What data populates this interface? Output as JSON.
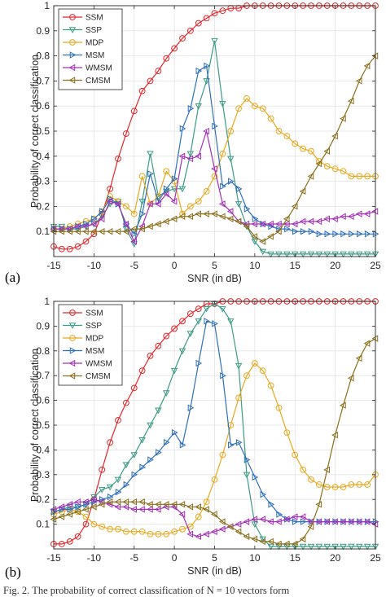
{
  "caption": "Fig. 2.   The probability of correct classification of N = 10 vectors form",
  "chart_data": [
    {
      "type": "line",
      "panel_label": "(a)",
      "xlabel": "SNR (in dB)",
      "ylabel": "Probability of correct classification",
      "xlim": [
        -15,
        25
      ],
      "ylim": [
        0,
        1
      ],
      "xticks": [
        "-15",
        "-10",
        "-5",
        "0",
        "5",
        "10",
        "15",
        "20",
        "25"
      ],
      "yticks": [
        "0.1",
        "0.2",
        "0.3",
        "0.4",
        "0.5",
        "0.6",
        "0.7",
        "0.8",
        "0.9",
        "1"
      ],
      "grid": true,
      "legend_position": "top-left",
      "x": [
        -15,
        -14,
        -13,
        -12,
        -11,
        -10,
        -9,
        -8,
        -7,
        -6,
        -5,
        -4,
        -3,
        -2,
        -1,
        0,
        1,
        2,
        3,
        4,
        5,
        6,
        7,
        8,
        9,
        10,
        11,
        12,
        13,
        14,
        15,
        16,
        17,
        18,
        19,
        20,
        21,
        22,
        23,
        24,
        25
      ],
      "series": [
        {
          "name": "SSM",
          "color": "#e3262b",
          "marker": "circle",
          "values": [
            0.04,
            0.03,
            0.03,
            0.04,
            0.06,
            0.09,
            0.17,
            0.27,
            0.39,
            0.49,
            0.58,
            0.66,
            0.7,
            0.74,
            0.79,
            0.83,
            0.87,
            0.9,
            0.93,
            0.95,
            0.97,
            0.98,
            0.99,
            0.99,
            1,
            1,
            1,
            1,
            1,
            1,
            1,
            1,
            1,
            1,
            1,
            1,
            1,
            1,
            1,
            1,
            1
          ]
        },
        {
          "name": "SSP",
          "color": "#3d9a86",
          "marker": "triangle-down",
          "values": [
            0.12,
            0.12,
            0.11,
            0.11,
            0.12,
            0.13,
            0.16,
            0.21,
            0.22,
            0.11,
            0.05,
            0.22,
            0.41,
            0.24,
            0.26,
            0.27,
            0.27,
            0.41,
            0.6,
            0.7,
            0.86,
            0.61,
            0.39,
            0.21,
            0.12,
            0.06,
            0.02,
            0.01,
            0.01,
            0.01,
            0.01,
            0.01,
            0.01,
            0.01,
            0.01,
            0.01,
            0.01,
            0.01,
            0.01,
            0.01,
            0.01
          ]
        },
        {
          "name": "MDP",
          "color": "#e8a81f",
          "marker": "circle",
          "values": [
            0.11,
            0.11,
            0.12,
            0.13,
            0.14,
            0.15,
            0.18,
            0.24,
            0.22,
            0.2,
            0.17,
            0.32,
            0.21,
            0.24,
            0.34,
            0.3,
            0.17,
            0.2,
            0.22,
            0.26,
            0.32,
            0.41,
            0.5,
            0.59,
            0.63,
            0.6,
            0.59,
            0.55,
            0.5,
            0.48,
            0.45,
            0.43,
            0.42,
            0.38,
            0.36,
            0.35,
            0.34,
            0.32,
            0.32,
            0.32,
            0.32
          ]
        },
        {
          "name": "MSM",
          "color": "#2f6fba",
          "marker": "triangle-right",
          "values": [
            0.11,
            0.11,
            0.11,
            0.12,
            0.13,
            0.15,
            0.18,
            0.23,
            0.21,
            0.13,
            0.09,
            0.17,
            0.33,
            0.22,
            0.27,
            0.31,
            0.51,
            0.59,
            0.74,
            0.76,
            0.52,
            0.28,
            0.3,
            0.27,
            0.19,
            0.15,
            0.13,
            0.12,
            0.11,
            0.11,
            0.1,
            0.1,
            0.1,
            0.09,
            0.09,
            0.09,
            0.09,
            0.09,
            0.09,
            0.09,
            0.09
          ]
        },
        {
          "name": "WMSM",
          "color": "#a330b7",
          "marker": "triangle-left",
          "values": [
            0.11,
            0.11,
            0.11,
            0.12,
            0.12,
            0.13,
            0.15,
            0.22,
            0.21,
            0.13,
            0.06,
            0.12,
            0.21,
            0.21,
            0.25,
            0.22,
            0.4,
            0.39,
            0.4,
            0.5,
            0.35,
            0.21,
            0.18,
            0.14,
            0.13,
            0.13,
            0.13,
            0.13,
            0.13,
            0.13,
            0.13,
            0.14,
            0.14,
            0.14,
            0.15,
            0.15,
            0.16,
            0.16,
            0.17,
            0.17,
            0.18
          ]
        },
        {
          "name": "CMSM",
          "color": "#8a6f1d",
          "marker": "triangle-left",
          "values": [
            0.1,
            0.1,
            0.1,
            0.1,
            0.1,
            0.1,
            0.1,
            0.1,
            0.1,
            0.1,
            0.11,
            0.11,
            0.12,
            0.13,
            0.14,
            0.15,
            0.16,
            0.16,
            0.17,
            0.17,
            0.17,
            0.16,
            0.15,
            0.14,
            0.12,
            0.08,
            0.06,
            0.08,
            0.1,
            0.15,
            0.2,
            0.26,
            0.32,
            0.37,
            0.42,
            0.48,
            0.55,
            0.62,
            0.7,
            0.76,
            0.8
          ]
        }
      ]
    },
    {
      "type": "line",
      "panel_label": "(b)",
      "xlabel": "SNR (in dB)",
      "ylabel": "Probability of correct classification",
      "xlim": [
        -15,
        25
      ],
      "ylim": [
        0,
        1
      ],
      "xticks": [
        "-15",
        "-10",
        "-5",
        "0",
        "5",
        "10",
        "15",
        "20",
        "25"
      ],
      "yticks": [
        "0.1",
        "0.2",
        "0.3",
        "0.4",
        "0.5",
        "0.6",
        "0.7",
        "0.8",
        "0.9",
        "1"
      ],
      "grid": true,
      "legend_position": "top-left",
      "x": [
        -15,
        -14,
        -13,
        -12,
        -11,
        -10,
        -9,
        -8,
        -7,
        -6,
        -5,
        -4,
        -3,
        -2,
        -1,
        0,
        1,
        2,
        3,
        4,
        5,
        6,
        7,
        8,
        9,
        10,
        11,
        12,
        13,
        14,
        15,
        16,
        17,
        18,
        19,
        20,
        21,
        22,
        23,
        24,
        25
      ],
      "series": [
        {
          "name": "SSM",
          "color": "#e3262b",
          "marker": "circle",
          "values": [
            0.02,
            0.02,
            0.03,
            0.05,
            0.1,
            0.2,
            0.32,
            0.43,
            0.52,
            0.59,
            0.65,
            0.72,
            0.78,
            0.82,
            0.86,
            0.89,
            0.92,
            0.95,
            0.97,
            0.99,
            0.99,
            1,
            1,
            1,
            1,
            1,
            1,
            1,
            1,
            1,
            1,
            1,
            1,
            1,
            1,
            1,
            1,
            1,
            1,
            1,
            1
          ]
        },
        {
          "name": "SSP",
          "color": "#3d9a86",
          "marker": "triangle-down",
          "values": [
            0.15,
            0.16,
            0.17,
            0.17,
            0.18,
            0.21,
            0.24,
            0.25,
            0.28,
            0.34,
            0.38,
            0.44,
            0.5,
            0.56,
            0.63,
            0.72,
            0.8,
            0.87,
            0.92,
            0.97,
            0.99,
            0.97,
            0.92,
            0.74,
            0.3,
            0.1,
            0.04,
            0.01,
            0.01,
            0.01,
            0.01,
            0.01,
            0.01,
            0.01,
            0.01,
            0.01,
            0.01,
            0.01,
            0.01,
            0.01,
            0.01
          ]
        },
        {
          "name": "MDP",
          "color": "#e8a81f",
          "marker": "circle",
          "values": [
            0.14,
            0.15,
            0.16,
            0.15,
            0.13,
            0.1,
            0.09,
            0.08,
            0.08,
            0.07,
            0.07,
            0.07,
            0.06,
            0.06,
            0.06,
            0.07,
            0.08,
            0.09,
            0.13,
            0.19,
            0.28,
            0.38,
            0.5,
            0.61,
            0.7,
            0.75,
            0.72,
            0.66,
            0.57,
            0.47,
            0.38,
            0.32,
            0.28,
            0.26,
            0.25,
            0.25,
            0.25,
            0.26,
            0.26,
            0.26,
            0.3
          ]
        },
        {
          "name": "MSM",
          "color": "#2f6fba",
          "marker": "triangle-right",
          "values": [
            0.15,
            0.16,
            0.16,
            0.17,
            0.18,
            0.19,
            0.2,
            0.21,
            0.23,
            0.26,
            0.3,
            0.33,
            0.36,
            0.39,
            0.43,
            0.47,
            0.42,
            0.57,
            0.75,
            0.92,
            0.91,
            0.7,
            0.42,
            0.43,
            0.36,
            0.29,
            0.22,
            0.18,
            0.14,
            0.12,
            0.11,
            0.11,
            0.11,
            0.11,
            0.11,
            0.11,
            0.11,
            0.11,
            0.11,
            0.11,
            0.11
          ]
        },
        {
          "name": "WMSM",
          "color": "#a330b7",
          "marker": "triangle-left",
          "values": [
            0.16,
            0.17,
            0.18,
            0.19,
            0.19,
            0.2,
            0.19,
            0.18,
            0.17,
            0.17,
            0.16,
            0.16,
            0.16,
            0.16,
            0.17,
            0.17,
            0.14,
            0.06,
            0.05,
            0.06,
            0.07,
            0.08,
            0.09,
            0.1,
            0.11,
            0.12,
            0.12,
            0.11,
            0.11,
            0.12,
            0.13,
            0.13,
            0.11,
            0.11,
            0.11,
            0.11,
            0.11,
            0.11,
            0.11,
            0.11,
            0.1
          ]
        },
        {
          "name": "CMSM",
          "color": "#8a6f1d",
          "marker": "triangle-left",
          "values": [
            0.12,
            0.13,
            0.14,
            0.15,
            0.16,
            0.17,
            0.18,
            0.19,
            0.19,
            0.19,
            0.19,
            0.19,
            0.18,
            0.18,
            0.18,
            0.18,
            0.18,
            0.17,
            0.17,
            0.16,
            0.14,
            0.11,
            0.09,
            0.07,
            0.05,
            0.04,
            0.03,
            0.03,
            0.02,
            0.02,
            0.02,
            0.04,
            0.09,
            0.18,
            0.32,
            0.46,
            0.58,
            0.69,
            0.77,
            0.83,
            0.85
          ]
        }
      ]
    }
  ]
}
